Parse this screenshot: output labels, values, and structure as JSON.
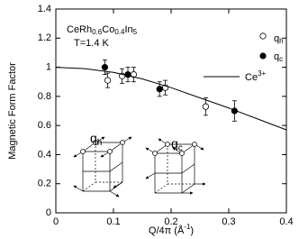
{
  "chart_data": {
    "type": "scatter",
    "sample": [
      "CeRh",
      "0.6",
      "Co",
      "0.4",
      "In",
      "5"
    ],
    "temperature": "T=1.4 K",
    "ylabel": "Magnetic Form Factor",
    "xlabel": [
      "Q/4π (Å",
      "-1",
      ")"
    ],
    "xlim": [
      0,
      0.4
    ],
    "xticks": [
      0,
      0.1,
      0.2,
      0.3,
      0.4
    ],
    "ylim": [
      0,
      1.4
    ],
    "yticks": [
      0,
      0.2,
      0.4,
      0.6,
      0.8,
      1,
      1.2,
      1.4
    ],
    "series": [
      {
        "name": "q",
        "subscript": "h",
        "style": "open",
        "color": "#000000",
        "x": [
          0.09,
          0.115,
          0.135,
          0.19,
          0.26
        ],
        "values": [
          0.91,
          0.94,
          0.95,
          0.86,
          0.73
        ],
        "errors": [
          0.05,
          0.05,
          0.05,
          0.05,
          0.06
        ]
      },
      {
        "name": "q",
        "subscript": "c",
        "style": "filled",
        "color": "#000000",
        "x": [
          0.085,
          0.125,
          0.18,
          0.31
        ],
        "values": [
          1.0,
          0.95,
          0.85,
          0.7
        ],
        "errors": [
          0.05,
          0.05,
          0.05,
          0.07
        ]
      },
      {
        "name": "Ce",
        "superscript": "3+",
        "style": "line",
        "color": "#000000",
        "x": [
          0,
          0.05,
          0.1,
          0.15,
          0.2,
          0.25,
          0.3,
          0.35,
          0.4
        ],
        "values": [
          1,
          0.99,
          0.965,
          0.92,
          0.86,
          0.79,
          0.72,
          0.645,
          0.57
        ]
      }
    ]
  }
}
